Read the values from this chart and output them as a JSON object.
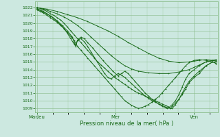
{
  "bg_color": "#cce8e0",
  "grid_color": "#88bb88",
  "line_color": "#1a6b1a",
  "marker_color": "#1a6b1a",
  "ylabel_values": [
    1009,
    1010,
    1011,
    1012,
    1013,
    1014,
    1015,
    1016,
    1017,
    1018,
    1019,
    1020,
    1021,
    1022
  ],
  "xtick_labels": [
    "MarJeu",
    "Mer",
    "Ven"
  ],
  "xtick_positions": [
    0.0,
    0.465,
    0.93
  ],
  "xlabel": "Pression niveau de la mer( hPa )",
  "ylim": [
    1008.5,
    1022.8
  ],
  "xlim": [
    -0.01,
    1.07
  ],
  "series": [
    [
      0.0,
      1021.7,
      0.02,
      1021.5,
      0.04,
      1021.3,
      0.06,
      1021.0,
      0.08,
      1020.7,
      0.1,
      1020.4,
      0.12,
      1020.1,
      0.14,
      1019.7,
      0.16,
      1019.3,
      0.18,
      1018.8,
      0.2,
      1018.3,
      0.22,
      1017.8,
      0.24,
      1017.0,
      0.26,
      1016.5,
      0.28,
      1016.0,
      0.3,
      1015.5,
      0.32,
      1015.0,
      0.34,
      1014.5,
      0.36,
      1014.0,
      0.38,
      1013.5,
      0.4,
      1013.0,
      0.42,
      1012.5,
      0.44,
      1012.0,
      0.46,
      1011.5,
      0.48,
      1011.0,
      0.5,
      1010.5,
      0.52,
      1010.0,
      0.54,
      1009.7,
      0.56,
      1009.4,
      0.58,
      1009.2,
      0.6,
      1009.0,
      0.62,
      1009.1,
      0.64,
      1009.3,
      0.66,
      1009.5,
      0.68,
      1009.8,
      0.7,
      1010.2,
      0.72,
      1010.5,
      0.74,
      1011.0,
      0.76,
      1011.5,
      0.78,
      1012.0,
      0.8,
      1012.5,
      0.82,
      1013.0,
      0.84,
      1013.5,
      0.86,
      1014.0,
      0.88,
      1014.5,
      0.9,
      1014.9,
      0.93,
      1015.2,
      0.96,
      1015.3,
      1.0,
      1015.2,
      1.04,
      1015.0,
      1.06,
      1014.8
    ],
    [
      0.0,
      1021.9,
      0.02,
      1021.7,
      0.04,
      1021.5,
      0.06,
      1021.2,
      0.08,
      1020.9,
      0.1,
      1020.6,
      0.12,
      1020.2,
      0.14,
      1019.8,
      0.16,
      1019.3,
      0.18,
      1018.7,
      0.2,
      1018.0,
      0.22,
      1017.3,
      0.23,
      1017.0,
      0.24,
      1017.8,
      0.26,
      1018.0,
      0.28,
      1017.6,
      0.3,
      1017.0,
      0.32,
      1016.3,
      0.34,
      1015.6,
      0.36,
      1014.9,
      0.38,
      1014.2,
      0.4,
      1013.5,
      0.42,
      1013.0,
      0.44,
      1012.8,
      0.46,
      1013.2,
      0.48,
      1013.5,
      0.5,
      1013.3,
      0.52,
      1013.0,
      0.54,
      1012.6,
      0.56,
      1012.2,
      0.58,
      1011.8,
      0.6,
      1011.4,
      0.62,
      1011.0,
      0.64,
      1010.6,
      0.66,
      1010.3,
      0.68,
      1010.0,
      0.7,
      1009.8,
      0.72,
      1009.6,
      0.74,
      1009.4,
      0.76,
      1009.2,
      0.77,
      1009.1,
      0.79,
      1009.0,
      0.8,
      1009.3,
      0.82,
      1009.7,
      0.84,
      1010.2,
      0.86,
      1010.8,
      0.88,
      1011.5,
      0.9,
      1012.3,
      0.93,
      1013.0,
      0.96,
      1013.5,
      1.0,
      1014.5,
      1.04,
      1015.0,
      1.06,
      1015.0
    ],
    [
      0.0,
      1022.0,
      0.02,
      1021.9,
      0.04,
      1021.7,
      0.06,
      1021.5,
      0.08,
      1021.2,
      0.1,
      1021.0,
      0.12,
      1020.7,
      0.14,
      1020.4,
      0.16,
      1020.0,
      0.18,
      1019.5,
      0.2,
      1019.0,
      0.22,
      1018.5,
      0.24,
      1018.0,
      0.26,
      1017.5,
      0.28,
      1017.0,
      0.3,
      1016.5,
      0.32,
      1016.0,
      0.34,
      1015.5,
      0.36,
      1015.0,
      0.38,
      1014.6,
      0.4,
      1014.2,
      0.42,
      1013.8,
      0.44,
      1013.4,
      0.46,
      1013.0,
      0.48,
      1012.7,
      0.5,
      1012.4,
      0.52,
      1012.1,
      0.54,
      1011.8,
      0.56,
      1011.5,
      0.58,
      1011.2,
      0.6,
      1011.0,
      0.62,
      1010.8,
      0.64,
      1010.6,
      0.66,
      1010.4,
      0.68,
      1010.2,
      0.7,
      1010.0,
      0.72,
      1009.8,
      0.74,
      1009.6,
      0.76,
      1009.4,
      0.78,
      1009.2,
      0.79,
      1009.0,
      0.8,
      1009.0,
      0.82,
      1009.5,
      0.84,
      1010.2,
      0.86,
      1011.0,
      0.88,
      1011.8,
      0.9,
      1012.5,
      0.93,
      1013.2,
      0.96,
      1013.8,
      1.0,
      1014.5,
      1.04,
      1015.0,
      1.06,
      1014.8
    ],
    [
      0.0,
      1022.0,
      0.06,
      1021.8,
      0.12,
      1021.5,
      0.18,
      1021.1,
      0.24,
      1020.7,
      0.3,
      1020.2,
      0.36,
      1019.6,
      0.42,
      1019.0,
      0.48,
      1018.3,
      0.54,
      1017.5,
      0.6,
      1016.8,
      0.66,
      1016.1,
      0.72,
      1015.5,
      0.78,
      1015.1,
      0.84,
      1014.9,
      0.9,
      1015.0,
      0.93,
      1015.1,
      0.96,
      1015.2,
      1.0,
      1015.3,
      1.04,
      1015.2,
      1.06,
      1015.1
    ],
    [
      0.0,
      1022.0,
      0.04,
      1021.8,
      0.08,
      1021.5,
      0.12,
      1021.2,
      0.16,
      1020.8,
      0.2,
      1020.3,
      0.24,
      1019.7,
      0.28,
      1019.0,
      0.32,
      1018.2,
      0.36,
      1017.4,
      0.4,
      1016.6,
      0.44,
      1015.8,
      0.48,
      1015.1,
      0.52,
      1014.5,
      0.56,
      1014.1,
      0.6,
      1013.8,
      0.66,
      1013.6,
      0.72,
      1013.5,
      0.78,
      1013.5,
      0.84,
      1013.7,
      0.9,
      1014.0,
      0.93,
      1014.3,
      0.96,
      1014.6,
      1.0,
      1015.0,
      1.04,
      1015.2,
      1.06,
      1015.2
    ],
    [
      0.0,
      1021.8,
      0.03,
      1021.5,
      0.06,
      1021.2,
      0.09,
      1020.8,
      0.12,
      1020.3,
      0.15,
      1019.7,
      0.18,
      1019.0,
      0.21,
      1018.2,
      0.22,
      1017.5,
      0.23,
      1017.2,
      0.24,
      1017.8,
      0.26,
      1018.2,
      0.28,
      1018.0,
      0.3,
      1017.5,
      0.33,
      1016.8,
      0.36,
      1016.0,
      0.39,
      1015.2,
      0.42,
      1014.5,
      0.45,
      1013.8,
      0.48,
      1013.2,
      0.5,
      1013.5,
      0.52,
      1013.8,
      0.54,
      1013.5,
      0.56,
      1013.0,
      0.58,
      1012.5,
      0.6,
      1012.0,
      0.62,
      1011.5,
      0.64,
      1011.0,
      0.66,
      1010.6,
      0.68,
      1010.2,
      0.7,
      1009.9,
      0.72,
      1009.6,
      0.74,
      1009.3,
      0.76,
      1009.1,
      0.77,
      1009.0,
      0.78,
      1009.1,
      0.8,
      1009.5,
      0.82,
      1010.0,
      0.84,
      1010.8,
      0.86,
      1011.8,
      0.88,
      1012.8,
      0.9,
      1013.5,
      0.93,
      1014.0,
      0.96,
      1014.5,
      1.0,
      1015.0,
      1.04,
      1015.2,
      1.06,
      1015.3
    ]
  ]
}
